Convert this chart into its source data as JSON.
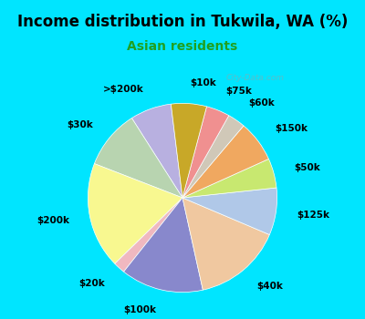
{
  "title": "Income distribution in Tukwila, WA (%)",
  "subtitle": "Asian residents",
  "watermark": "City-Data.com",
  "background_outer": "#00e5ff",
  "background_chart": "#d8f0e8",
  "segments": [
    {
      "label": ">$200k",
      "value": 7,
      "color": "#b8b0e0"
    },
    {
      "label": "$30k",
      "value": 10,
      "color": "#b8d4b0"
    },
    {
      "label": "$200k",
      "value": 18,
      "color": "#f8f890"
    },
    {
      "label": "$20k",
      "value": 2,
      "color": "#f0b8c0"
    },
    {
      "label": "$100k",
      "value": 14,
      "color": "#8888cc"
    },
    {
      "label": "$40k",
      "value": 15,
      "color": "#f0c8a0"
    },
    {
      "label": "$125k",
      "value": 8,
      "color": "#b0c8e8"
    },
    {
      "label": "$50k",
      "value": 5,
      "color": "#c8e870"
    },
    {
      "label": "$150k",
      "value": 7,
      "color": "#f0a860"
    },
    {
      "label": "$60k",
      "value": 3,
      "color": "#d0c8b8"
    },
    {
      "label": "$75k",
      "value": 4,
      "color": "#f09090"
    },
    {
      "label": "$10k",
      "value": 6,
      "color": "#c8a828"
    }
  ],
  "title_fontsize": 12,
  "subtitle_fontsize": 10,
  "label_fontsize": 7.5,
  "startangle": 97
}
